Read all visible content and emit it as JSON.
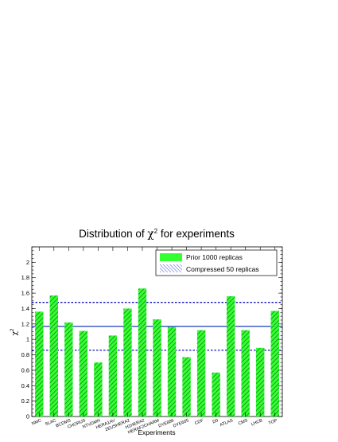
{
  "chart_data": {
    "type": "bar",
    "title_prefix": "Distribution of ",
    "title_symbol": "χ",
    "title_exponent": "2",
    "title_suffix": " for experiments",
    "xlabel": "Experiments",
    "ylabel_symbol": "χ",
    "ylabel_exponent": "2",
    "ylim": [
      0,
      2.2
    ],
    "yticks": [
      0,
      0.2,
      0.4,
      0.6,
      0.8,
      1,
      1.2,
      1.4,
      1.6,
      1.8,
      2
    ],
    "ytick_labels": [
      "0",
      "0.2",
      "0.4",
      "0.6",
      "0.8",
      "1",
      "1.2",
      "1.4",
      "1.6",
      "1.8",
      "2"
    ],
    "categories": [
      "NMC",
      "SLAC",
      "BCDMS",
      "CHORUS",
      "NTVDMN",
      "HERA1AV",
      "ZEUSHERA2",
      "H1HERA2",
      "HERAF2CHARM",
      "DYE886",
      "DYE605",
      "CDF",
      "D0",
      "ATLAS",
      "CMS",
      "LHCB",
      "TOP"
    ],
    "series": [
      {
        "name": "Prior 1000 replicas",
        "values": [
          1.36,
          1.57,
          1.22,
          1.11,
          0.7,
          1.05,
          1.4,
          1.66,
          1.26,
          1.16,
          0.77,
          1.12,
          0.57,
          1.56,
          1.12,
          0.89,
          1.37
        ]
      }
    ],
    "reference_lines": {
      "name": "Compressed 50 replicas",
      "mean": 1.17,
      "upper": 1.48,
      "lower": 0.86
    },
    "legend_position": "top-right",
    "colors": {
      "bar_fill": "#33ff33",
      "bar_hatch": "#1a8a1a",
      "line": "#1f3fbf",
      "dashed": "#1010c0"
    }
  }
}
